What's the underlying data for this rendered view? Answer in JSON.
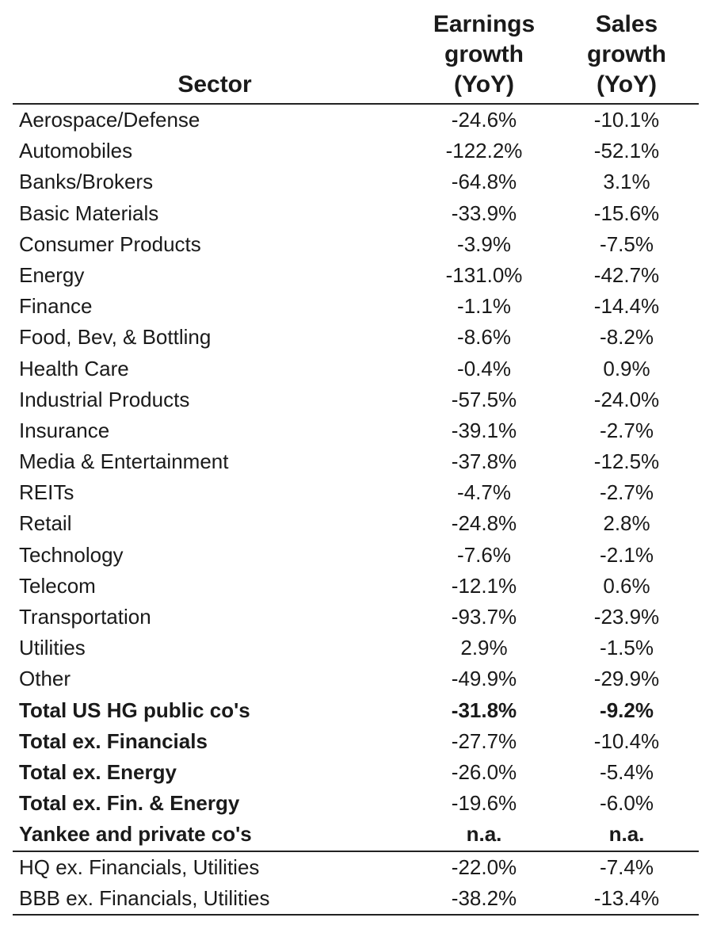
{
  "header": {
    "sector": "Sector",
    "earnings": [
      "Earnings",
      "growth",
      "(YoY)"
    ],
    "sales": [
      "Sales",
      "growth",
      "(YoY)"
    ]
  },
  "rows": [
    {
      "sector": "Aerospace/Defense",
      "earnings": "-24.6%",
      "sales": "-10.1%"
    },
    {
      "sector": "Automobiles",
      "earnings": "-122.2%",
      "sales": "-52.1%"
    },
    {
      "sector": "Banks/Brokers",
      "earnings": "-64.8%",
      "sales": "3.1%"
    },
    {
      "sector": "Basic Materials",
      "earnings": "-33.9%",
      "sales": "-15.6%"
    },
    {
      "sector": "Consumer Products",
      "earnings": "-3.9%",
      "sales": "-7.5%"
    },
    {
      "sector": "Energy",
      "earnings": "-131.0%",
      "sales": "-42.7%"
    },
    {
      "sector": "Finance",
      "earnings": "-1.1%",
      "sales": "-14.4%"
    },
    {
      "sector": "Food, Bev, & Bottling",
      "earnings": "-8.6%",
      "sales": "-8.2%"
    },
    {
      "sector": "Health Care",
      "earnings": "-0.4%",
      "sales": "0.9%"
    },
    {
      "sector": "Industrial Products",
      "earnings": "-57.5%",
      "sales": "-24.0%"
    },
    {
      "sector": "Insurance",
      "earnings": "-39.1%",
      "sales": "-2.7%"
    },
    {
      "sector": "Media & Entertainment",
      "earnings": "-37.8%",
      "sales": "-12.5%"
    },
    {
      "sector": "REITs",
      "earnings": "-4.7%",
      "sales": "-2.7%"
    },
    {
      "sector": "Retail",
      "earnings": "-24.8%",
      "sales": "2.8%"
    },
    {
      "sector": "Technology",
      "earnings": "-7.6%",
      "sales": "-2.1%"
    },
    {
      "sector": "Telecom",
      "earnings": "-12.1%",
      "sales": "0.6%"
    },
    {
      "sector": "Transportation",
      "earnings": "-93.7%",
      "sales": "-23.9%"
    },
    {
      "sector": "Utilities",
      "earnings": "2.9%",
      "sales": "-1.5%"
    },
    {
      "sector": "Other",
      "earnings": "-49.9%",
      "sales": "-29.9%"
    }
  ],
  "totals": [
    {
      "sector": "Total US HG public co's",
      "earnings": "-31.8%",
      "sales": "-9.2%",
      "bold_values": true
    },
    {
      "sector": "Total ex. Financials",
      "earnings": "-27.7%",
      "sales": "-10.4%",
      "bold_values": false
    },
    {
      "sector": "Total ex. Energy",
      "earnings": "-26.0%",
      "sales": "-5.4%",
      "bold_values": false
    },
    {
      "sector": "Total ex. Fin. & Energy",
      "earnings": "-19.6%",
      "sales": "-6.0%",
      "bold_values": false
    },
    {
      "sector": "Yankee and private co's",
      "earnings": "n.a.",
      "sales": "n.a.",
      "bold_values": true
    }
  ],
  "footer_rows": [
    {
      "sector": "HQ ex. Financials, Utilities",
      "earnings": "-22.0%",
      "sales": "-7.4%"
    },
    {
      "sector": "BBB ex. Financials, Utilities",
      "earnings": "-38.2%",
      "sales": "-13.4%"
    }
  ]
}
